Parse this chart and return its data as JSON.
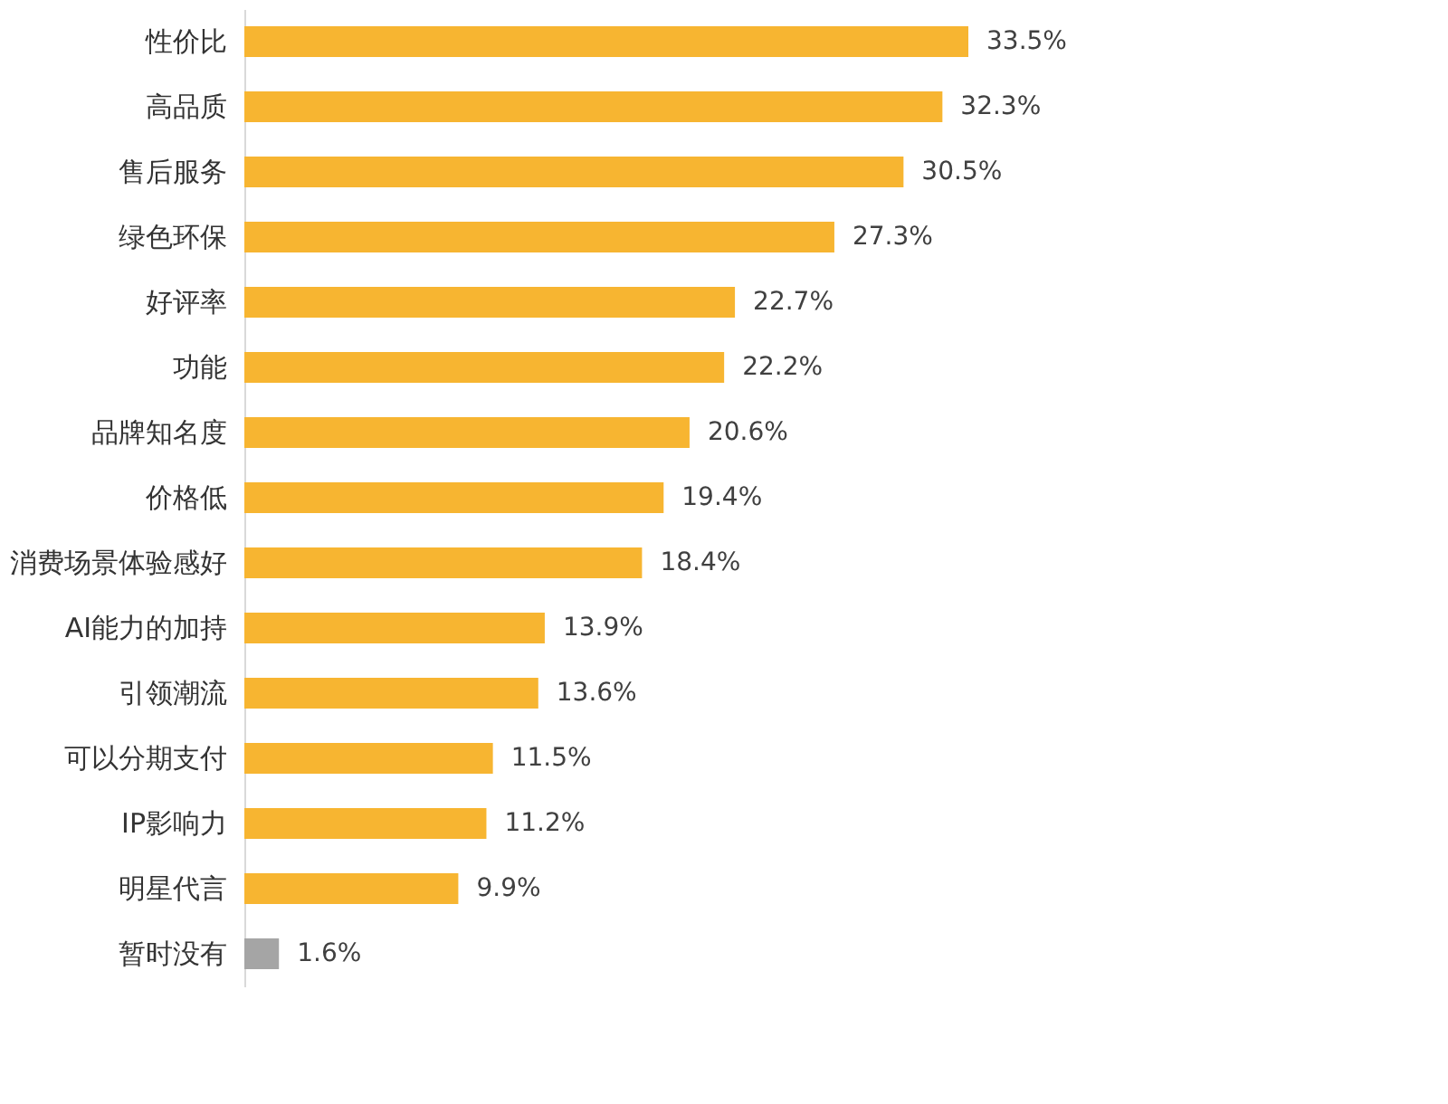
{
  "chart_data": {
    "type": "bar",
    "orientation": "horizontal",
    "categories": [
      "性价比",
      "高品质",
      "售后服务",
      "绿色环保",
      "好评率",
      "功能",
      "品牌知名度",
      "价格低",
      "消费场景体验感好",
      "AI能力的加持",
      "引领潮流",
      "可以分期支付",
      "IP影响力",
      "明星代言",
      "暂时没有"
    ],
    "values": [
      33.5,
      32.3,
      30.5,
      27.3,
      22.7,
      22.2,
      20.6,
      19.4,
      18.4,
      13.9,
      13.6,
      11.5,
      11.2,
      9.9,
      1.6
    ],
    "value_labels": [
      "33.5%",
      "32.3%",
      "30.5%",
      "27.3%",
      "22.7%",
      "22.2%",
      "20.6%",
      "19.4%",
      "18.4%",
      "13.9%",
      "13.6%",
      "11.5%",
      "11.2%",
      "9.9%",
      "1.6%"
    ],
    "colors": [
      "#f7b531",
      "#f7b531",
      "#f7b531",
      "#f7b531",
      "#f7b531",
      "#f7b531",
      "#f7b531",
      "#f7b531",
      "#f7b531",
      "#f7b531",
      "#f7b531",
      "#f7b531",
      "#f7b531",
      "#f7b531",
      "#a5a5a5"
    ]
  }
}
